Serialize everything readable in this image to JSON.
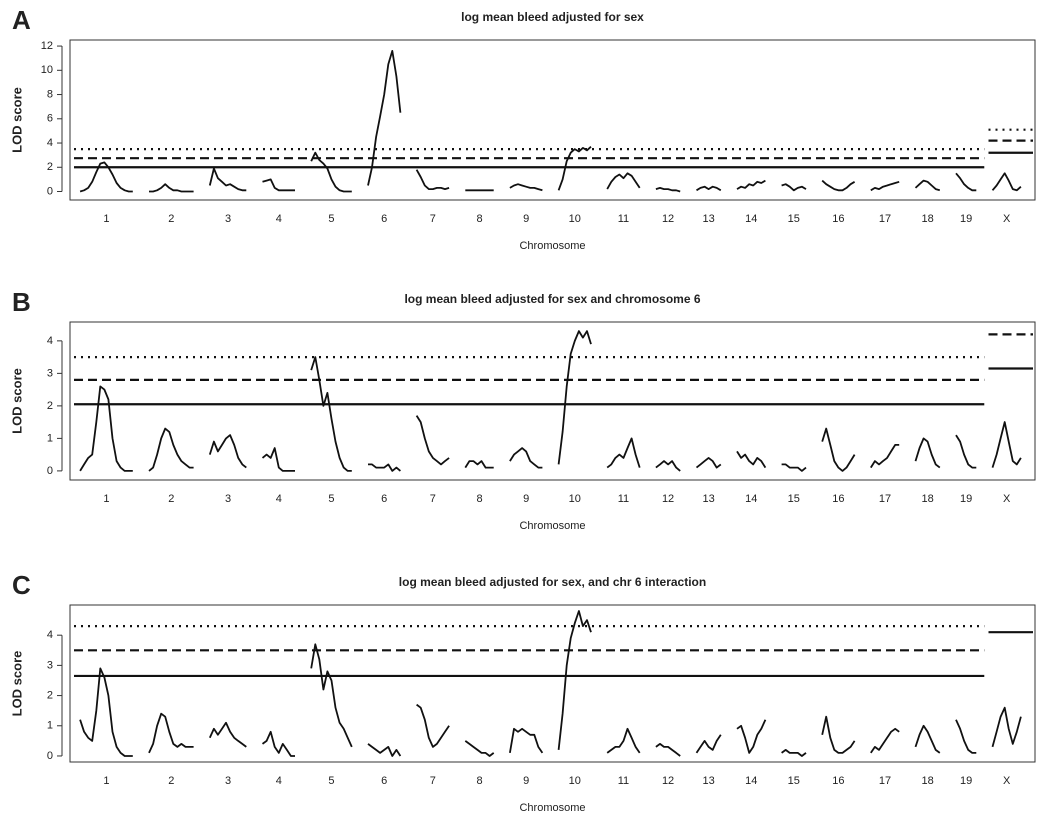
{
  "chart_data": [
    {
      "type": "line",
      "label": "A",
      "title": "log mean bleed adjusted for sex",
      "ylabel": "LOD score",
      "xlabel": "Chromosome",
      "ylim": [
        -0.7,
        12.5
      ],
      "yticks": [
        0,
        2,
        4,
        6,
        8,
        10,
        12
      ],
      "color": "#111",
      "categories": [
        "1",
        "2",
        "3",
        "4",
        "5",
        "6",
        "7",
        "8",
        "9",
        "10",
        "11",
        "12",
        "13",
        "14",
        "15",
        "16",
        "17",
        "18",
        "19",
        "X"
      ],
      "curves": [
        [
          0,
          0.1,
          0.3,
          0.8,
          1.6,
          2.3,
          2.4,
          2.0,
          1.4,
          0.7,
          0.3,
          0.1,
          0,
          0
        ],
        [
          0,
          0,
          0.1,
          0.3,
          0.6,
          0.3,
          0.1,
          0.1,
          0,
          0,
          0,
          0
        ],
        [
          0.5,
          1.9,
          1.1,
          0.8,
          0.5,
          0.6,
          0.4,
          0.2,
          0.1,
          0.1
        ],
        [
          0.8,
          0.9,
          1.0,
          0.3,
          0.1,
          0.1,
          0.1,
          0.1,
          0.1
        ],
        [
          2.5,
          3.2,
          2.6,
          2.3,
          1.9,
          1.0,
          0.4,
          0.1,
          0,
          0,
          0
        ],
        [
          0.5,
          2.0,
          4.5,
          6.2,
          8.0,
          10.5,
          11.6,
          9.5,
          6.5
        ],
        [
          1.8,
          1.2,
          0.5,
          0.2,
          0.2,
          0.3,
          0.3,
          0.2,
          0.3
        ],
        [
          0.1,
          0.1,
          0.1,
          0.1,
          0.1,
          0.1,
          0.1,
          0.1
        ],
        [
          0.3,
          0.5,
          0.6,
          0.5,
          0.4,
          0.3,
          0.3,
          0.2,
          0.1
        ],
        [
          0.1,
          1.0,
          2.5,
          3.2,
          3.5,
          3.3,
          3.6,
          3.4,
          3.7
        ],
        [
          0.2,
          0.8,
          1.2,
          1.4,
          1.1,
          1.5,
          1.3,
          0.8,
          0.3
        ],
        [
          0.2,
          0.3,
          0.2,
          0.2,
          0.1,
          0.1,
          0
        ],
        [
          0.1,
          0.3,
          0.4,
          0.2,
          0.4,
          0.3,
          0.1
        ],
        [
          0.2,
          0.4,
          0.3,
          0.6,
          0.5,
          0.8,
          0.7,
          0.9
        ],
        [
          0.5,
          0.6,
          0.4,
          0.1,
          0.3,
          0.4,
          0.2
        ],
        [
          0.9,
          0.6,
          0.4,
          0.2,
          0.1,
          0.1,
          0.3,
          0.6,
          0.8
        ],
        [
          0.1,
          0.3,
          0.2,
          0.4,
          0.5,
          0.6,
          0.7,
          0.8
        ],
        [
          0.3,
          0.6,
          0.9,
          0.8,
          0.5,
          0.2,
          0.1
        ],
        [
          1.5,
          1.1,
          0.6,
          0.3,
          0.1,
          0.1
        ],
        [
          0.1,
          0.5,
          1.0,
          1.5,
          0.9,
          0.2,
          0.1,
          0.4
        ]
      ],
      "thresholds": {
        "autosome": [
          {
            "style": "dotted",
            "value": 3.5
          },
          {
            "style": "dashed",
            "value": 2.75
          },
          {
            "style": "solid",
            "value": 2.0
          }
        ],
        "x": [
          {
            "style": "dotted",
            "value": 5.1
          },
          {
            "style": "dashed",
            "value": 4.2
          },
          {
            "style": "solid",
            "value": 3.2
          }
        ]
      }
    },
    {
      "type": "line",
      "label": "B",
      "title": "log mean bleed adjusted for sex and chromosome 6",
      "ylabel": "LOD score",
      "xlabel": "Chromosome",
      "ylim": [
        -0.28,
        4.58
      ],
      "yticks": [
        0,
        1,
        2,
        3,
        4
      ],
      "color": "#111",
      "categories": [
        "1",
        "2",
        "3",
        "4",
        "5",
        "6",
        "7",
        "8",
        "9",
        "10",
        "11",
        "12",
        "13",
        "14",
        "15",
        "16",
        "17",
        "18",
        "19",
        "X"
      ],
      "curves": [
        [
          0,
          0.2,
          0.4,
          0.5,
          1.5,
          2.6,
          2.5,
          2.2,
          1.0,
          0.3,
          0.1,
          0,
          0,
          0
        ],
        [
          0,
          0.1,
          0.5,
          1.0,
          1.3,
          1.2,
          0.8,
          0.5,
          0.3,
          0.2,
          0.1,
          0.1
        ],
        [
          0.5,
          0.9,
          0.6,
          0.8,
          1.0,
          1.1,
          0.8,
          0.4,
          0.2,
          0.1
        ],
        [
          0.4,
          0.5,
          0.4,
          0.7,
          0.1,
          0,
          0,
          0,
          0
        ],
        [
          3.1,
          3.5,
          2.8,
          2.0,
          2.4,
          1.6,
          0.9,
          0.4,
          0.1,
          0,
          0
        ],
        [
          0.2,
          0.2,
          0.1,
          0.1,
          0.1,
          0.2,
          0,
          0.1,
          0
        ],
        [
          1.7,
          1.5,
          1.0,
          0.6,
          0.4,
          0.3,
          0.2,
          0.3,
          0.4
        ],
        [
          0.1,
          0.3,
          0.3,
          0.2,
          0.3,
          0.1,
          0.1,
          0.1
        ],
        [
          0.3,
          0.5,
          0.6,
          0.7,
          0.6,
          0.3,
          0.2,
          0.1,
          0.1
        ],
        [
          0.2,
          1.2,
          2.6,
          3.6,
          4.0,
          4.3,
          4.1,
          4.3,
          3.9
        ],
        [
          0.1,
          0.2,
          0.4,
          0.5,
          0.4,
          0.7,
          1.0,
          0.5,
          0.1
        ],
        [
          0.1,
          0.2,
          0.3,
          0.2,
          0.3,
          0.1,
          0
        ],
        [
          0.1,
          0.2,
          0.3,
          0.4,
          0.3,
          0.1,
          0.2
        ],
        [
          0.6,
          0.4,
          0.5,
          0.3,
          0.2,
          0.4,
          0.3,
          0.1
        ],
        [
          0.2,
          0.2,
          0.1,
          0.1,
          0.1,
          0,
          0.1
        ],
        [
          0.9,
          1.3,
          0.8,
          0.3,
          0.1,
          0,
          0.1,
          0.3,
          0.5
        ],
        [
          0.1,
          0.3,
          0.2,
          0.3,
          0.4,
          0.6,
          0.8,
          0.8
        ],
        [
          0.3,
          0.7,
          1.0,
          0.9,
          0.5,
          0.2,
          0.1
        ],
        [
          1.1,
          0.9,
          0.5,
          0.2,
          0.1,
          0.1
        ],
        [
          0.1,
          0.5,
          1.0,
          1.5,
          0.9,
          0.3,
          0.2,
          0.4
        ]
      ],
      "thresholds": {
        "autosome": [
          {
            "style": "dotted",
            "value": 3.5
          },
          {
            "style": "dashed",
            "value": 2.8
          },
          {
            "style": "solid",
            "value": 2.05
          }
        ],
        "x": [
          {
            "style": "dashed",
            "value": 4.2
          },
          {
            "style": "solid",
            "value": 3.15
          }
        ]
      }
    },
    {
      "type": "line",
      "label": "C",
      "title": "log mean bleed adjusted for sex, and chr 6 interaction",
      "ylabel": "LOD score",
      "xlabel": "Chromosome",
      "ylim": [
        -0.2,
        5.0
      ],
      "yticks": [
        0,
        1,
        2,
        3,
        4
      ],
      "color": "#111",
      "categories": [
        "1",
        "2",
        "3",
        "4",
        "5",
        "6",
        "7",
        "8",
        "9",
        "10",
        "11",
        "12",
        "13",
        "14",
        "15",
        "16",
        "17",
        "18",
        "19",
        "X"
      ],
      "curves": [
        [
          1.2,
          0.8,
          0.6,
          0.5,
          1.5,
          2.9,
          2.6,
          2.0,
          0.8,
          0.3,
          0.1,
          0,
          0,
          0
        ],
        [
          0.1,
          0.4,
          1.0,
          1.4,
          1.3,
          0.8,
          0.4,
          0.3,
          0.4,
          0.3,
          0.3,
          0.3
        ],
        [
          0.6,
          0.9,
          0.7,
          0.9,
          1.1,
          0.8,
          0.6,
          0.5,
          0.4,
          0.3
        ],
        [
          0.4,
          0.5,
          0.8,
          0.3,
          0.1,
          0.4,
          0.2,
          0,
          0
        ],
        [
          2.9,
          3.7,
          3.2,
          2.2,
          2.8,
          2.5,
          1.6,
          1.1,
          0.9,
          0.6,
          0.3
        ],
        [
          0.4,
          0.3,
          0.2,
          0.1,
          0.2,
          0.3,
          0,
          0.2,
          0
        ],
        [
          1.7,
          1.6,
          1.2,
          0.6,
          0.3,
          0.4,
          0.6,
          0.8,
          1.0
        ],
        [
          0.5,
          0.4,
          0.3,
          0.2,
          0.1,
          0.1,
          0,
          0.1
        ],
        [
          0.1,
          0.9,
          0.8,
          0.9,
          0.8,
          0.7,
          0.7,
          0.3,
          0.1
        ],
        [
          0.2,
          1.4,
          3.0,
          3.9,
          4.4,
          4.8,
          4.3,
          4.5,
          4.1
        ],
        [
          0.1,
          0.2,
          0.3,
          0.3,
          0.5,
          0.9,
          0.6,
          0.3,
          0.1
        ],
        [
          0.3,
          0.4,
          0.3,
          0.3,
          0.2,
          0.1,
          0
        ],
        [
          0.1,
          0.3,
          0.5,
          0.3,
          0.2,
          0.5,
          0.7
        ],
        [
          0.9,
          1.0,
          0.6,
          0.1,
          0.3,
          0.7,
          0.9,
          1.2
        ],
        [
          0.1,
          0.2,
          0.1,
          0.1,
          0.1,
          0,
          0.1
        ],
        [
          0.7,
          1.3,
          0.6,
          0.2,
          0.1,
          0.1,
          0.2,
          0.3,
          0.5
        ],
        [
          0.1,
          0.3,
          0.2,
          0.4,
          0.6,
          0.8,
          0.9,
          0.8
        ],
        [
          0.3,
          0.7,
          1.0,
          0.8,
          0.5,
          0.2,
          0.1
        ],
        [
          1.2,
          0.9,
          0.5,
          0.2,
          0.1,
          0.1
        ],
        [
          0.3,
          0.8,
          1.3,
          1.6,
          0.9,
          0.4,
          0.8,
          1.3
        ]
      ],
      "thresholds": {
        "autosome": [
          {
            "style": "dotted",
            "value": 4.3
          },
          {
            "style": "dashed",
            "value": 3.5
          },
          {
            "style": "solid",
            "value": 2.65
          }
        ],
        "x": [
          {
            "style": "solid",
            "value": 4.1
          }
        ]
      }
    }
  ]
}
